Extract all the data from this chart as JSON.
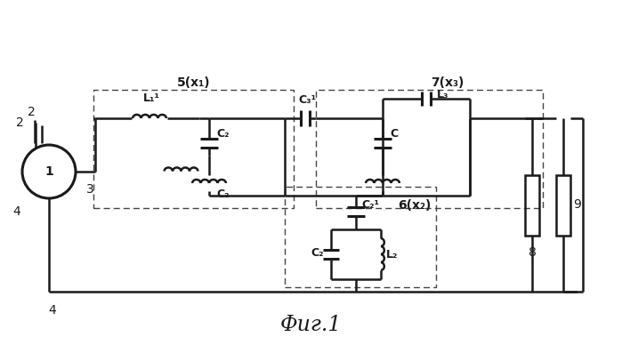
{
  "title": "Фиг.1",
  "bg_color": "#ffffff",
  "line_color": "#1a1a1a",
  "dashed_color": "#444444",
  "label_5": "5(x₁)",
  "label_7": "7(x₃)",
  "label_6": "6(x₂)",
  "label_L1": "L₁¹",
  "label_C2a": "C₂",
  "label_C2b": "C₂",
  "label_C3": "C₃¹",
  "label_L3": "L₃",
  "label_C": "C",
  "label_C21": "C₂¹",
  "label_C2c": "C₂",
  "label_L2": "L₂",
  "num_1": "1",
  "num_2": "2",
  "num_3": "3",
  "num_4": "4",
  "num_8": "8",
  "num_9": "9"
}
